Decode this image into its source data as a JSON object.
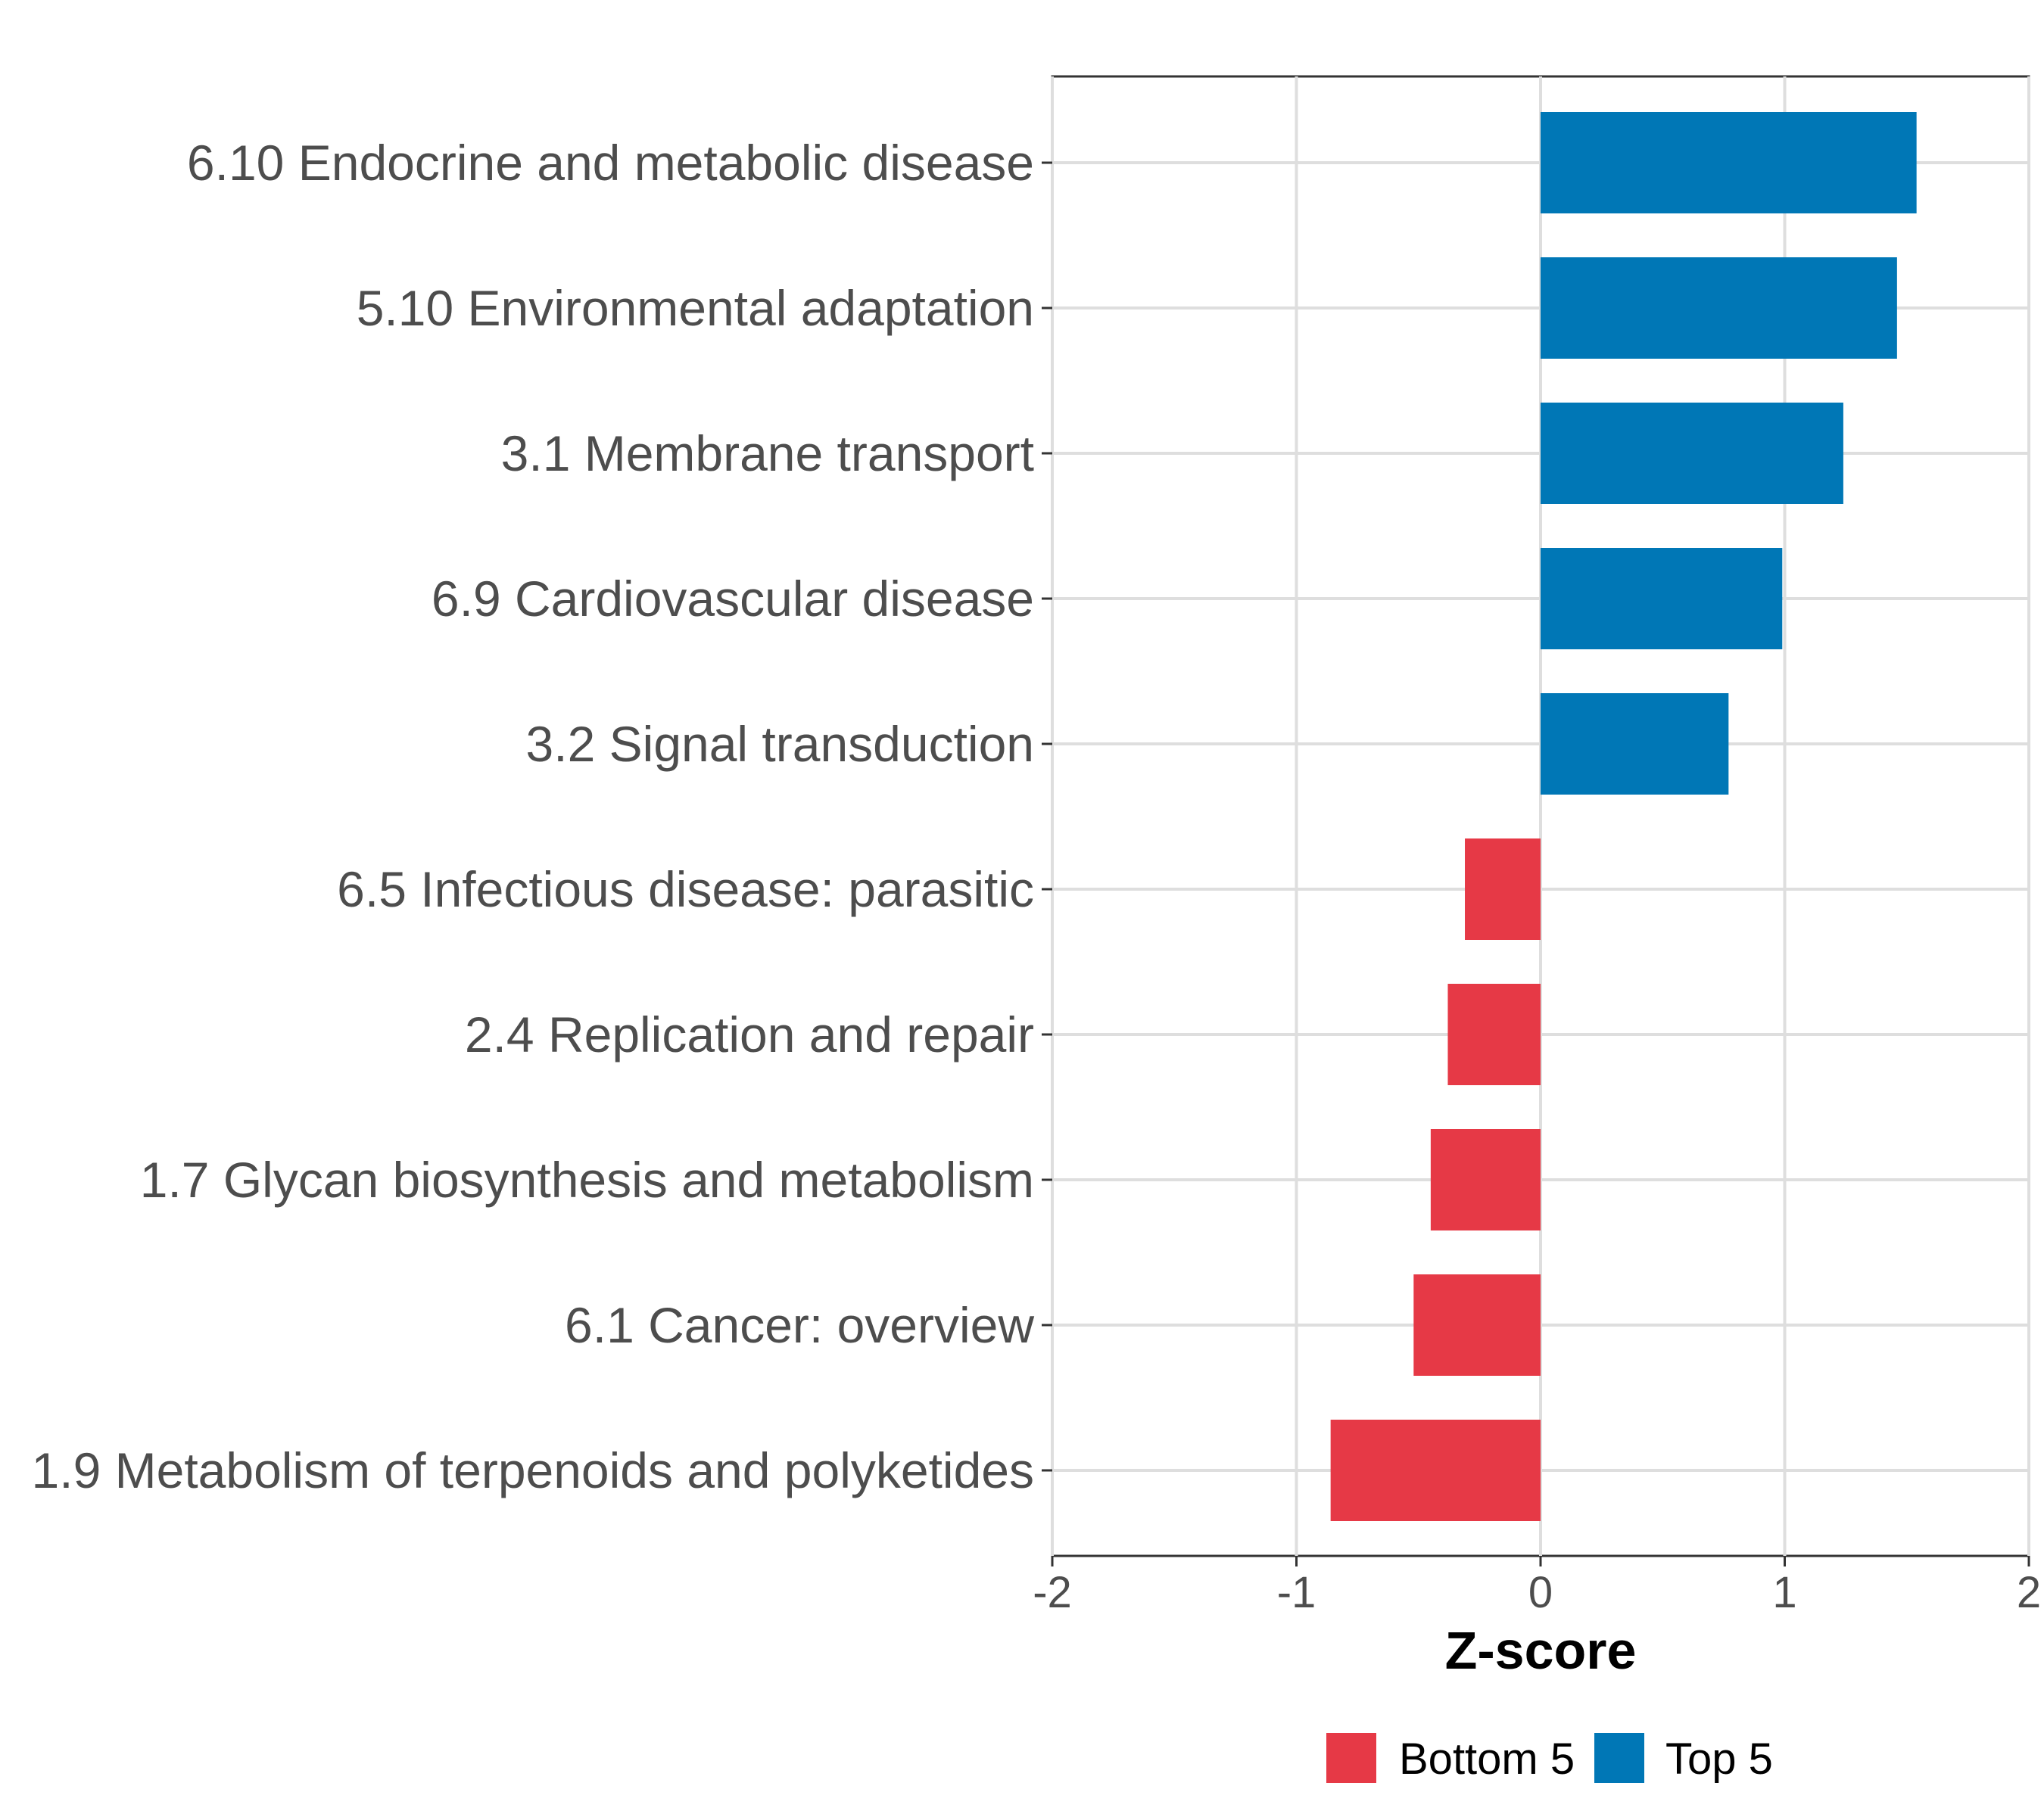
{
  "chart_data": {
    "type": "bar",
    "orientation": "horizontal",
    "title": "",
    "xlabel": "Z-score",
    "ylabel": "",
    "xlim": [
      -2,
      2
    ],
    "xticks": [
      "-2",
      "-1",
      "0",
      "1",
      "2"
    ],
    "grid": true,
    "legend_position": "bottom",
    "categories": [
      "6.10 Endocrine and metabolic disease",
      "5.10 Environmental adaptation",
      "3.1 Membrane transport",
      "6.9 Cardiovascular disease",
      "3.2 Signal transduction",
      "6.5 Infectious disease: parasitic",
      "2.4 Replication and repair",
      "1.7 Glycan biosynthesis and metabolism",
      "6.1 Cancer: overview",
      "1.9 Metabolism of terpenoids and polyketides"
    ],
    "values": [
      1.54,
      1.46,
      1.24,
      0.99,
      0.77,
      -0.31,
      -0.38,
      -0.45,
      -0.52,
      -0.86
    ],
    "groups": [
      "Top 5",
      "Top 5",
      "Top 5",
      "Top 5",
      "Top 5",
      "Bottom 5",
      "Bottom 5",
      "Bottom 5",
      "Bottom 5",
      "Bottom 5"
    ],
    "legend": [
      {
        "name": "Bottom 5",
        "color": "#e63946"
      },
      {
        "name": "Top 5",
        "color": "#0077b6"
      }
    ]
  }
}
